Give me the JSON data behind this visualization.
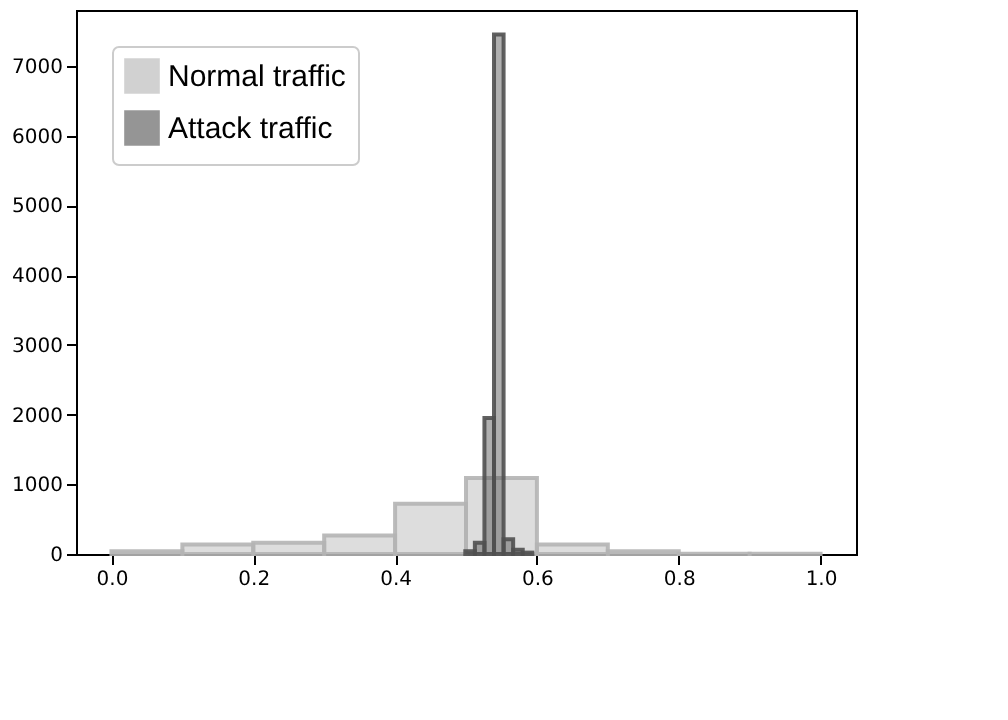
{
  "chart_data": {
    "type": "histogram",
    "bins": [
      0.0,
      0.1,
      0.2,
      0.3,
      0.4,
      0.5,
      0.6,
      0.7,
      0.8,
      0.9,
      1.0
    ],
    "series": [
      {
        "name": "Normal traffic",
        "color": "#b4b4b4",
        "values": [
          40,
          135,
          160,
          265,
          720,
          1090,
          135,
          40,
          5,
          5
        ]
      },
      {
        "name": "Attack traffic",
        "color": "#505050",
        "bins": [
          0.499,
          0.5125,
          0.526,
          0.5395,
          0.553,
          0.5665,
          0.58,
          0.5935
        ],
        "values": [
          40,
          160,
          1950,
          7450,
          210,
          60,
          20
        ]
      }
    ],
    "xlim": [
      -0.05,
      1.05
    ],
    "xticks": [
      {
        "value": 0,
        "label": "0.0"
      },
      0.2,
      0.4,
      0.6,
      0.8,
      {
        "value": 1,
        "label": "1.0"
      }
    ],
    "ylim": [
      0,
      7800
    ],
    "yticks": [
      0,
      1000,
      2000,
      3000,
      4000,
      5000,
      6000,
      7000
    ],
    "grid": false,
    "legend": "top left"
  }
}
